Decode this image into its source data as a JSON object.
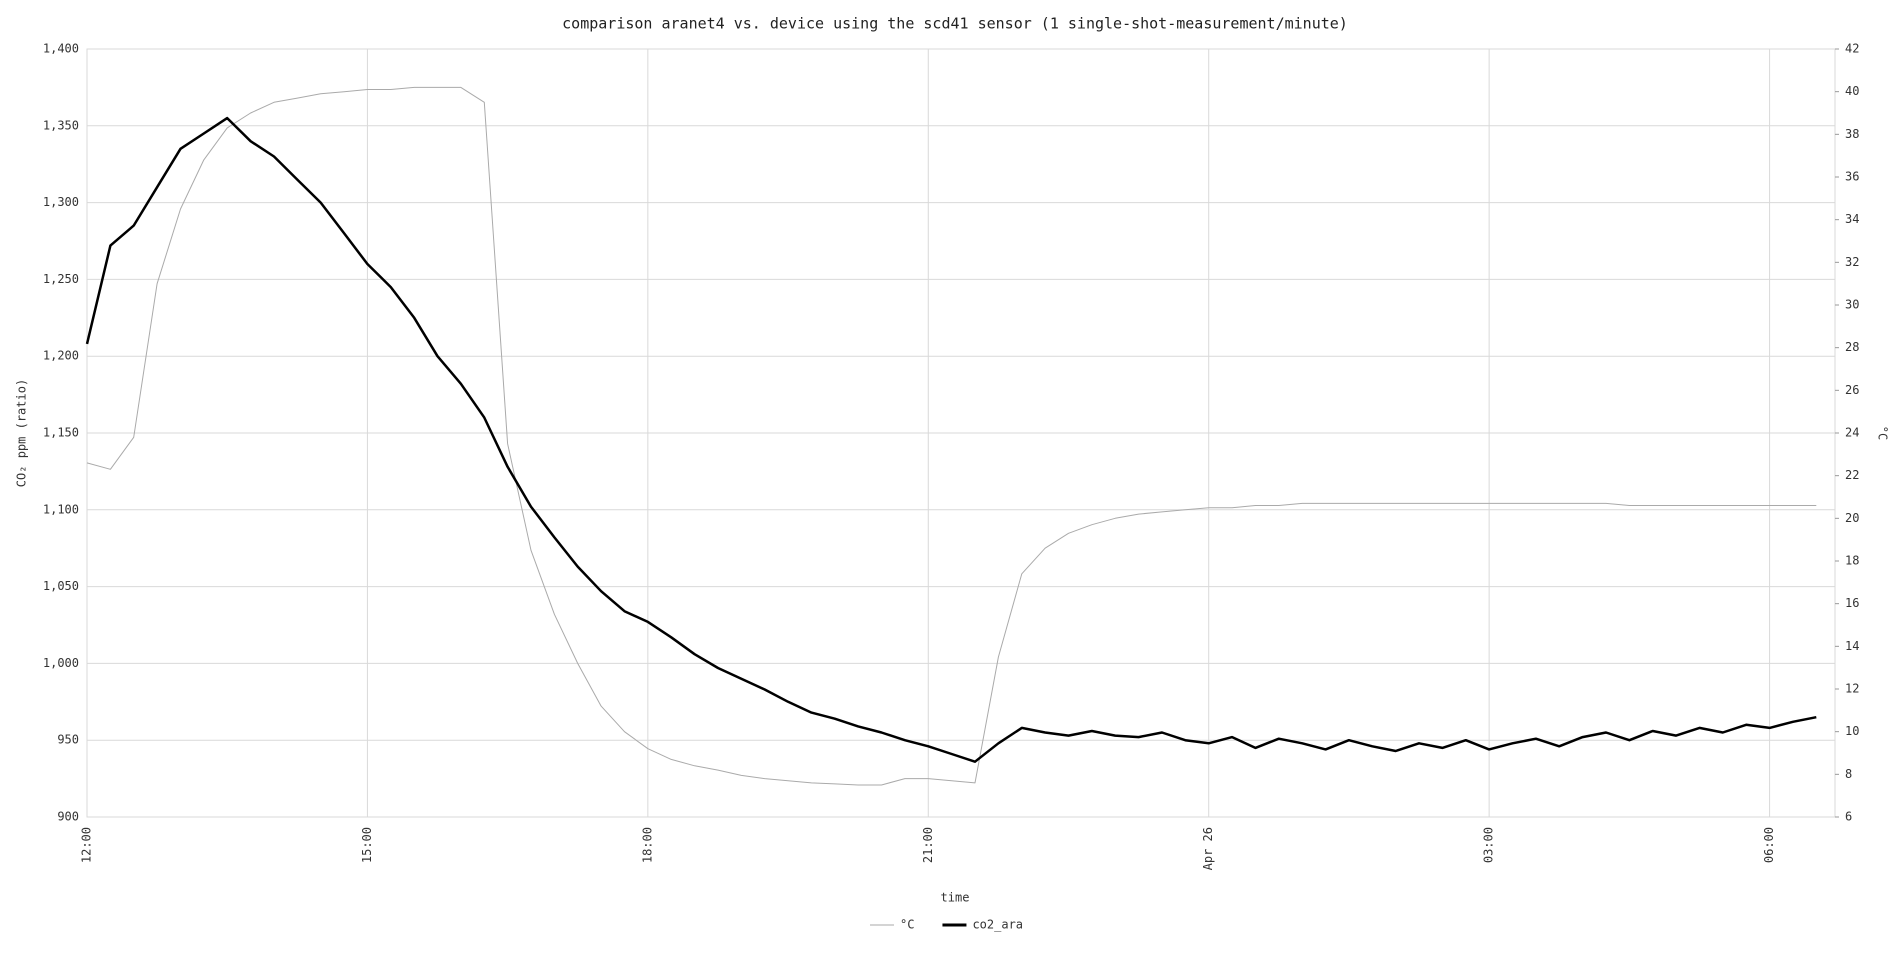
{
  "chart_data": {
    "type": "line",
    "title": "comparison aranet4 vs. device using the scd41 sensor (1 single-shot-measurement/minute)",
    "x_label": "time",
    "y_label": "CO₂ ppm (ratio)",
    "y2_label": "°C",
    "x": [
      0,
      0.25,
      0.5,
      0.75,
      1,
      1.25,
      1.5,
      1.75,
      2,
      2.25,
      2.5,
      2.75,
      3,
      3.25,
      3.5,
      3.75,
      4,
      4.25,
      4.5,
      4.75,
      5,
      5.25,
      5.5,
      5.75,
      6,
      6.25,
      6.5,
      6.75,
      7,
      7.25,
      7.5,
      7.75,
      8,
      8.25,
      8.5,
      8.75,
      9,
      9.25,
      9.5,
      9.75,
      10,
      10.25,
      10.5,
      10.75,
      11,
      11.25,
      11.5,
      11.75,
      12,
      12.25,
      12.5,
      12.75,
      13,
      13.25,
      13.5,
      13.75,
      14,
      14.25,
      14.5,
      14.75,
      15,
      15.25,
      15.5,
      15.75,
      16,
      16.25,
      16.5,
      16.75,
      17,
      17.25,
      17.5,
      17.75,
      18,
      18.25,
      18.5
    ],
    "xlim": [
      0,
      18.7
    ],
    "xticks": [
      {
        "value": 0,
        "label": "12:00"
      },
      {
        "value": 3,
        "label": "15:00"
      },
      {
        "value": 6,
        "label": "18:00"
      },
      {
        "value": 9,
        "label": "21:00"
      },
      {
        "value": 12,
        "label": "Apr 26"
      },
      {
        "value": 15,
        "label": "03:00"
      },
      {
        "value": 18,
        "label": "06:00"
      }
    ],
    "ylim": [
      900,
      1400
    ],
    "yticks": [
      900,
      950,
      {
        "value": 1000,
        "label": "1,000"
      },
      {
        "value": 1050,
        "label": "1,050"
      },
      {
        "value": 1100,
        "label": "1,100"
      },
      {
        "value": 1150,
        "label": "1,150"
      },
      {
        "value": 1200,
        "label": "1,200"
      },
      {
        "value": 1250,
        "label": "1,250"
      },
      {
        "value": 1300,
        "label": "1,300"
      },
      {
        "value": 1350,
        "label": "1,350"
      },
      {
        "value": 1400,
        "label": "1,400"
      }
    ],
    "y2lim": [
      6,
      42
    ],
    "y2ticks": [
      6,
      8,
      10,
      12,
      14,
      16,
      18,
      20,
      22,
      24,
      26,
      28,
      30,
      32,
      34,
      36,
      38,
      40,
      42
    ],
    "grid": true,
    "series": [
      {
        "name": "°C",
        "color": "#aaaaaa",
        "axis": "y2",
        "values": [
          22.6,
          22.3,
          23.8,
          31,
          34.5,
          36.8,
          38.3,
          39.0,
          39.5,
          39.7,
          39.9,
          40.0,
          40.1,
          40.1,
          40.2,
          40.2,
          40.2,
          39.5,
          23.5,
          18.5,
          15.5,
          13.2,
          11.2,
          10.0,
          9.2,
          8.7,
          8.4,
          8.2,
          7.95,
          7.8,
          7.7,
          7.6,
          7.55,
          7.5,
          7.5,
          7.8,
          7.8,
          7.7,
          7.6,
          13.5,
          17.4,
          18.6,
          19.3,
          19.7,
          20.0,
          20.2,
          20.3,
          20.4,
          20.5,
          20.5,
          20.6,
          20.6,
          20.7,
          20.7,
          20.7,
          20.7,
          20.7,
          20.7,
          20.7,
          20.7,
          20.7,
          20.7,
          20.7,
          20.7,
          20.7,
          20.7,
          20.6,
          20.6,
          20.6,
          20.6,
          20.6,
          20.6,
          20.6,
          20.6,
          20.6
        ]
      },
      {
        "name": "co2_ara",
        "color": "#000000",
        "values": [
          1208,
          1272,
          1285,
          1310,
          1335,
          1345,
          1355,
          1340,
          1330,
          1315,
          1300,
          1280,
          1260,
          1245,
          1225,
          1200,
          1182,
          1160,
          1128,
          1102,
          1082,
          1063,
          1047,
          1034,
          1027,
          1017,
          1006,
          997,
          990,
          983,
          975,
          968,
          964,
          959,
          955,
          950,
          946,
          941,
          936,
          948,
          958,
          955,
          953,
          956,
          953,
          952,
          955,
          950,
          948,
          952,
          945,
          951,
          948,
          944,
          950,
          946,
          943,
          948,
          945,
          950,
          944,
          948,
          951,
          946,
          952,
          955,
          950,
          956,
          953,
          958,
          955,
          960,
          958,
          962,
          965
        ]
      }
    ]
  }
}
